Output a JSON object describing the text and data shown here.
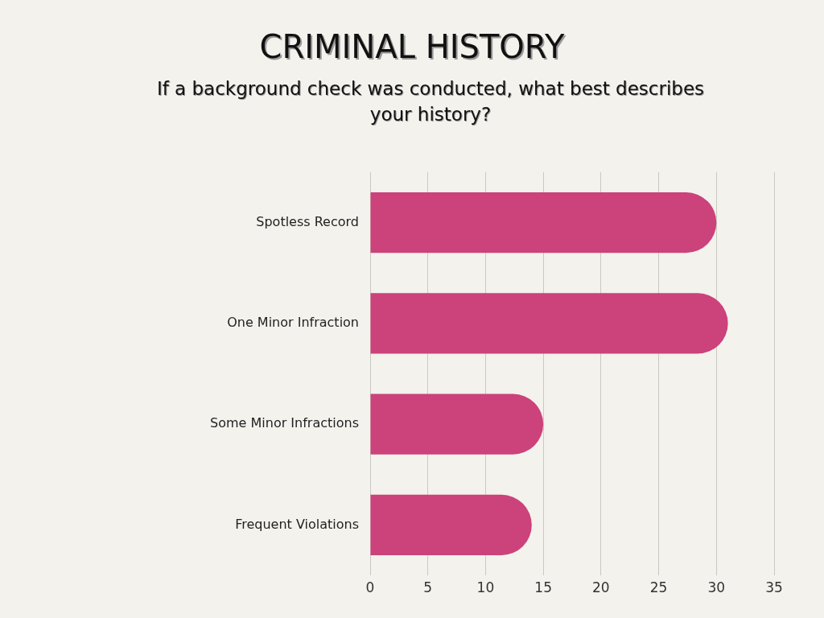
{
  "chart_data": {
    "type": "bar",
    "orientation": "horizontal",
    "title": "CRIMINAL HISTORY",
    "subtitle": "If a background check was conducted, what best describes your history?",
    "categories": [
      "Spotless Record",
      "One Minor Infraction",
      "Some Minor Infractions",
      "Frequent Violations"
    ],
    "values": [
      30,
      31,
      15,
      14
    ],
    "color": "#cc427a",
    "xlim": [
      0,
      35
    ],
    "xticks": [
      0,
      5,
      10,
      15,
      20,
      25,
      30,
      35
    ],
    "grid": "x"
  }
}
